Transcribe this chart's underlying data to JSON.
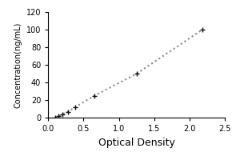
{
  "x_data": [
    0.1,
    0.15,
    0.2,
    0.28,
    0.38,
    0.65,
    1.25,
    2.18
  ],
  "y_data": [
    0,
    2,
    4,
    7,
    12,
    25,
    50,
    100
  ],
  "xlabel": "Optical Density",
  "ylabel": "Concentration(ng/mL)",
  "xlim": [
    0,
    2.5
  ],
  "ylim": [
    0,
    120
  ],
  "xticks": [
    0,
    0.5,
    1.0,
    1.5,
    2.0,
    2.5
  ],
  "yticks": [
    0,
    20,
    40,
    60,
    80,
    100,
    120
  ],
  "line_color": "#888888",
  "marker": "+",
  "marker_color": "#111111",
  "marker_size": 5,
  "line_style": "dotted",
  "line_width": 1.5,
  "background_color": "#ffffff",
  "title": "",
  "xlabel_fontsize": 9,
  "ylabel_fontsize": 7,
  "tick_fontsize": 7
}
